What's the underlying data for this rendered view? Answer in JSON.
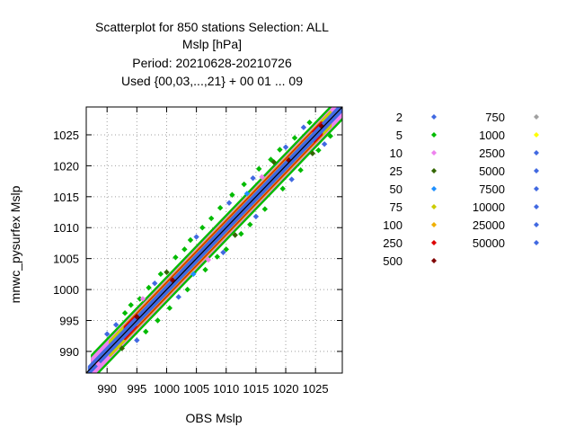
{
  "chart_data": {
    "type": "scatter",
    "title_lines": [
      "Scatterplot for  850 stations Selection: ALL",
      "Mslp [hPa]",
      "Period: 20210628-20210726",
      "Used {00,03,...,21} + 00 01 ... 09"
    ],
    "xlabel": "OBS Mslp",
    "ylabel": "mnwc_pysurfex Mslp",
    "xlim": [
      986.5,
      1029.5
    ],
    "ylim": [
      986.5,
      1029.5
    ],
    "xticks": [
      990,
      995,
      1000,
      1005,
      1010,
      1015,
      1020,
      1025
    ],
    "yticks": [
      990,
      995,
      1000,
      1005,
      1010,
      1015,
      1020,
      1025
    ],
    "grid": true,
    "legend_position": "right",
    "legend_columns": [
      [
        {
          "label": "2",
          "color": "#4169e1"
        },
        {
          "label": "5",
          "color": "#00bb00"
        },
        {
          "label": "10",
          "color": "#ee82ee"
        },
        {
          "label": "25",
          "color": "#336600"
        },
        {
          "label": "50",
          "color": "#1e90ff"
        },
        {
          "label": "75",
          "color": "#cccc00"
        },
        {
          "label": "100",
          "color": "#f0b000"
        },
        {
          "label": "250",
          "color": "#dd0000"
        },
        {
          "label": "500",
          "color": "#800000"
        }
      ],
      [
        {
          "label": "750",
          "color": "#a0a0a0"
        },
        {
          "label": "1000",
          "color": "#ffff00"
        },
        {
          "label": "2500",
          "color": "#4169e1"
        },
        {
          "label": "5000",
          "color": "#4169e1"
        },
        {
          "label": "7500",
          "color": "#4169e1"
        },
        {
          "label": "10000",
          "color": "#4169e1"
        },
        {
          "label": "25000",
          "color": "#4169e1"
        },
        {
          "label": "50000",
          "color": "#4169e1"
        }
      ]
    ],
    "density_bands": [
      {
        "color": "#00bb00",
        "half_width": 1.9,
        "from": 987.5,
        "to": 1029.5
      },
      {
        "color": "#ee82ee",
        "half_width": 1.4,
        "from": 987.5,
        "to": 1029.5
      },
      {
        "color": "#cccc00",
        "half_width": 1.15,
        "from": 990.5,
        "to": 1027.5
      },
      {
        "color": "#dd0000",
        "half_width": 0.95,
        "from": 993.0,
        "to": 1026.0
      },
      {
        "color": "#f0b000",
        "half_width": 0.7,
        "from": 995.0,
        "to": 1024.5
      },
      {
        "color": "#4169e1",
        "half_width": 0.55,
        "from": 987.0,
        "to": 1029.5
      }
    ],
    "outlier_points": [
      {
        "x": 993.0,
        "y": 996.2,
        "color": "#00bb00"
      },
      {
        "x": 994.0,
        "y": 997.5,
        "color": "#00bb00"
      },
      {
        "x": 995.5,
        "y": 998.5,
        "color": "#00bb00"
      },
      {
        "x": 997.0,
        "y": 1000.3,
        "color": "#00bb00"
      },
      {
        "x": 999.0,
        "y": 1002.5,
        "color": "#00bb00"
      },
      {
        "x": 1001.5,
        "y": 1005.2,
        "color": "#00bb00"
      },
      {
        "x": 1003.0,
        "y": 1006.5,
        "color": "#00bb00"
      },
      {
        "x": 1004.0,
        "y": 1008.0,
        "color": "#00bb00"
      },
      {
        "x": 1006.0,
        "y": 1010.0,
        "color": "#00bb00"
      },
      {
        "x": 1007.5,
        "y": 1011.5,
        "color": "#00bb00"
      },
      {
        "x": 1009.0,
        "y": 1013.2,
        "color": "#00bb00"
      },
      {
        "x": 1011.0,
        "y": 1015.3,
        "color": "#00bb00"
      },
      {
        "x": 1013.0,
        "y": 1017.0,
        "color": "#00bb00"
      },
      {
        "x": 1015.5,
        "y": 1019.5,
        "color": "#00bb00"
      },
      {
        "x": 1017.5,
        "y": 1021.0,
        "color": "#00bb00"
      },
      {
        "x": 1019.0,
        "y": 1022.6,
        "color": "#00bb00"
      },
      {
        "x": 1021.5,
        "y": 1024.5,
        "color": "#00bb00"
      },
      {
        "x": 1024.0,
        "y": 1027.0,
        "color": "#00bb00"
      },
      {
        "x": 996.5,
        "y": 993.2,
        "color": "#00bb00"
      },
      {
        "x": 998.5,
        "y": 995.0,
        "color": "#00bb00"
      },
      {
        "x": 1000.5,
        "y": 997.0,
        "color": "#00bb00"
      },
      {
        "x": 1003.5,
        "y": 1000.0,
        "color": "#00bb00"
      },
      {
        "x": 1006.5,
        "y": 1003.2,
        "color": "#00bb00"
      },
      {
        "x": 1008.5,
        "y": 1005.3,
        "color": "#00bb00"
      },
      {
        "x": 1010.0,
        "y": 1006.5,
        "color": "#00bb00"
      },
      {
        "x": 1012.5,
        "y": 1009.0,
        "color": "#00bb00"
      },
      {
        "x": 1014.0,
        "y": 1010.5,
        "color": "#00bb00"
      },
      {
        "x": 1016.5,
        "y": 1013.0,
        "color": "#00bb00"
      },
      {
        "x": 1019.5,
        "y": 1016.3,
        "color": "#00bb00"
      },
      {
        "x": 1022.5,
        "y": 1019.3,
        "color": "#00bb00"
      },
      {
        "x": 1025.5,
        "y": 1022.5,
        "color": "#00bb00"
      },
      {
        "x": 1027.5,
        "y": 1024.8,
        "color": "#00bb00"
      },
      {
        "x": 990.0,
        "y": 992.8,
        "color": "#4169e1"
      },
      {
        "x": 991.5,
        "y": 994.3,
        "color": "#4169e1"
      },
      {
        "x": 998.0,
        "y": 1001.0,
        "color": "#4169e1"
      },
      {
        "x": 1005.0,
        "y": 1008.5,
        "color": "#4169e1"
      },
      {
        "x": 1010.5,
        "y": 1014.0,
        "color": "#4169e1"
      },
      {
        "x": 1014.5,
        "y": 1018.0,
        "color": "#4169e1"
      },
      {
        "x": 1020.0,
        "y": 1023.0,
        "color": "#4169e1"
      },
      {
        "x": 1023.0,
        "y": 1026.2,
        "color": "#4169e1"
      },
      {
        "x": 995.0,
        "y": 991.8,
        "color": "#4169e1"
      },
      {
        "x": 1002.0,
        "y": 998.8,
        "color": "#4169e1"
      },
      {
        "x": 1009.5,
        "y": 1006.0,
        "color": "#4169e1"
      },
      {
        "x": 1015.0,
        "y": 1011.8,
        "color": "#4169e1"
      },
      {
        "x": 1021.0,
        "y": 1017.8,
        "color": "#4169e1"
      },
      {
        "x": 1026.5,
        "y": 1023.5,
        "color": "#4169e1"
      },
      {
        "x": 992.5,
        "y": 990.5,
        "color": "#336600"
      },
      {
        "x": 1000.0,
        "y": 1002.8,
        "color": "#336600"
      },
      {
        "x": 1011.5,
        "y": 1008.8,
        "color": "#336600"
      },
      {
        "x": 1018.0,
        "y": 1020.6,
        "color": "#336600"
      },
      {
        "x": 1024.5,
        "y": 1022.0,
        "color": "#336600"
      },
      {
        "x": 996.0,
        "y": 998.5,
        "color": "#ee82ee"
      },
      {
        "x": 1007.0,
        "y": 1004.8,
        "color": "#ee82ee"
      },
      {
        "x": 1016.0,
        "y": 1018.2,
        "color": "#ee82ee"
      },
      {
        "x": 988.5,
        "y": 988.0,
        "color": "#ee82ee"
      },
      {
        "x": 1004.5,
        "y": 1002.5,
        "color": "#1e90ff"
      },
      {
        "x": 1013.5,
        "y": 1015.5,
        "color": "#1e90ff"
      },
      {
        "x": 995.0,
        "y": 995.6,
        "color": "#800000"
      },
      {
        "x": 1001.0,
        "y": 1001.5,
        "color": "#800000"
      },
      {
        "x": 1020.5,
        "y": 1020.9,
        "color": "#800000"
      },
      {
        "x": 1026.0,
        "y": 1026.4,
        "color": "#800000"
      }
    ],
    "reference_line": {
      "from": 986.5,
      "to": 1029.5,
      "color": "#000000"
    }
  }
}
